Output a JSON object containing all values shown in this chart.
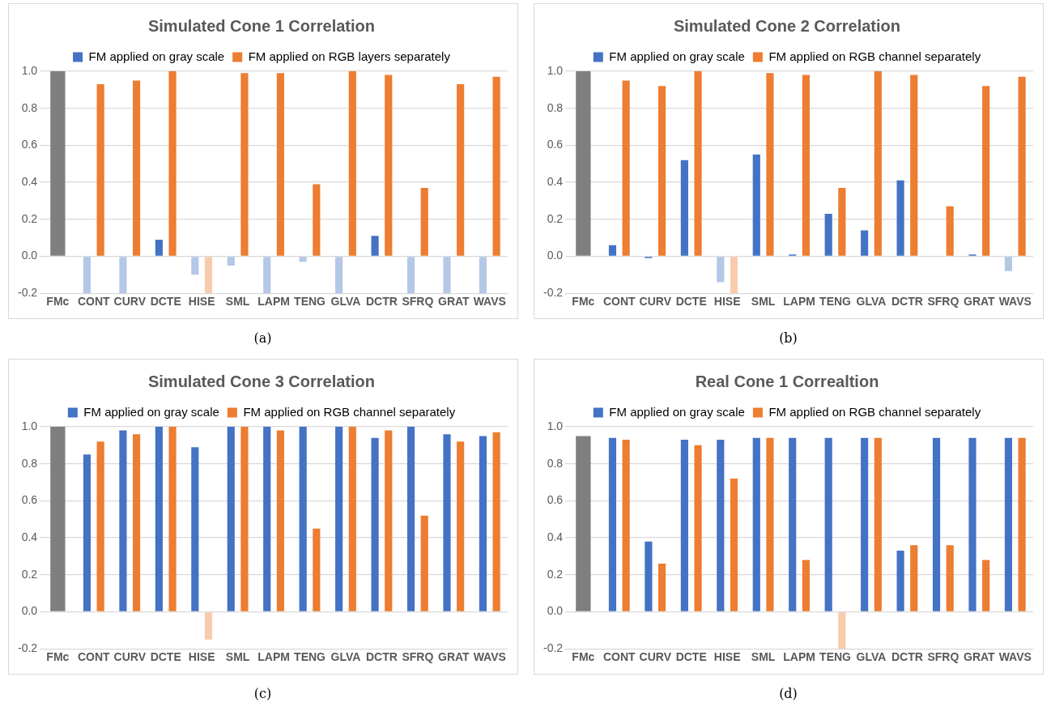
{
  "chart_data": [
    {
      "type": "bar",
      "title": "Simulated Cone 1 Correlation",
      "categories": [
        "FMc",
        "CONT",
        "CURV",
        "DCTE",
        "HISE",
        "SML",
        "LAPM",
        "TENG",
        "GLVA",
        "DCTR",
        "SFRQ",
        "GRAT",
        "WAVS"
      ],
      "series": [
        {
          "color": "#7f7f7f",
          "values": [
            1.0,
            null,
            null,
            null,
            null,
            null,
            null,
            null,
            null,
            null,
            null,
            null,
            null
          ]
        },
        {
          "name": "FM applied on gray scale",
          "color": "#4472c4",
          "colors": [
            "#4472c4",
            "#b4c7e7",
            "#b4c7e7",
            "#4472c4",
            "#b4c7e7",
            "#b4c7e7",
            "#b4c7e7",
            "#b4c7e7",
            "#b4c7e7",
            "#4472c4",
            "#b4c7e7",
            "#b4c7e7",
            "#b4c7e7"
          ],
          "values": [
            null,
            -0.2,
            -0.2,
            0.09,
            -0.1,
            -0.05,
            -0.2,
            -0.03,
            -0.2,
            0.11,
            -0.2,
            -0.2,
            -0.2
          ]
        },
        {
          "name": "FM applied on RGB layers separately",
          "color": "#ed7d31",
          "colors": [
            "#ed7d31",
            "#ed7d31",
            "#ed7d31",
            "#ed7d31",
            "#f8cbad",
            "#ed7d31",
            "#ed7d31",
            "#ed7d31",
            "#ed7d31",
            "#ed7d31",
            "#ed7d31",
            "#ed7d31",
            "#ed7d31"
          ],
          "values": [
            null,
            0.93,
            0.95,
            1.0,
            -0.2,
            0.99,
            0.99,
            0.39,
            1.0,
            0.98,
            0.37,
            0.93,
            0.97
          ]
        }
      ],
      "ylim": [
        -0.2,
        1.0
      ],
      "yticks": [
        {
          "value": -0.2,
          "label": "-0.2"
        },
        {
          "value": 0,
          "label": "0.0"
        },
        {
          "value": 0.2,
          "label": "0.2"
        },
        {
          "value": 0.4,
          "label": "0.4"
        },
        {
          "value": 0.6,
          "label": "0.6"
        },
        {
          "value": 0.8,
          "label": "0.8"
        },
        {
          "value": 1,
          "label": "1.0"
        }
      ],
      "grid": "y",
      "legend": "top",
      "annotations": [
        "(a)"
      ]
    },
    {
      "type": "bar",
      "title": "Simulated Cone 2 Correlation",
      "categories": [
        "FMc",
        "CONT",
        "CURV",
        "DCTE",
        "HISE",
        "SML",
        "LAPM",
        "TENG",
        "GLVA",
        "DCTR",
        "SFRQ",
        "GRAT",
        "WAVS"
      ],
      "series": [
        {
          "color": "#7f7f7f",
          "values": [
            1.0,
            null,
            null,
            null,
            null,
            null,
            null,
            null,
            null,
            null,
            null,
            null,
            null
          ]
        },
        {
          "name": "FM applied on gray scale",
          "color": "#4472c4",
          "colors": [
            "#4472c4",
            "#4472c4",
            "#4472c4",
            "#4472c4",
            "#b4c7e7",
            "#4472c4",
            "#4472c4",
            "#4472c4",
            "#4472c4",
            "#4472c4",
            "#4472c4",
            "#4472c4",
            "#b4c7e7"
          ],
          "values": [
            null,
            0.06,
            -0.01,
            0.52,
            -0.14,
            0.55,
            0.01,
            0.23,
            0.14,
            0.41,
            0.0,
            0.01,
            -0.08
          ]
        },
        {
          "name": "FM applied on RGB channel separately",
          "color": "#ed7d31",
          "colors": [
            "#ed7d31",
            "#ed7d31",
            "#ed7d31",
            "#ed7d31",
            "#f8cbad",
            "#ed7d31",
            "#ed7d31",
            "#ed7d31",
            "#ed7d31",
            "#ed7d31",
            "#ed7d31",
            "#ed7d31",
            "#ed7d31"
          ],
          "values": [
            null,
            0.95,
            0.92,
            1.0,
            -0.2,
            0.99,
            0.98,
            0.37,
            1.0,
            0.98,
            0.27,
            0.92,
            0.97
          ]
        }
      ],
      "ylim": [
        -0.2,
        1.0
      ],
      "yticks": [
        {
          "value": -0.2,
          "label": "-0.2"
        },
        {
          "value": 0,
          "label": "0.0"
        },
        {
          "value": 0.2,
          "label": "0.2"
        },
        {
          "value": 0.4,
          "label": "0.4"
        },
        {
          "value": 0.6,
          "label": "0.6"
        },
        {
          "value": 0.8,
          "label": "0.8"
        },
        {
          "value": 1,
          "label": "1.0"
        }
      ],
      "grid": "y",
      "legend": "top",
      "annotations": [
        "(b)"
      ]
    },
    {
      "type": "bar",
      "title": "Simulated Cone 3 Correlation",
      "categories": [
        "FMc",
        "CONT",
        "CURV",
        "DCTE",
        "HISE",
        "SML",
        "LAPM",
        "TENG",
        "GLVA",
        "DCTR",
        "SFRQ",
        "GRAT",
        "WAVS"
      ],
      "series": [
        {
          "color": "#7f7f7f",
          "values": [
            1.0,
            null,
            null,
            null,
            null,
            null,
            null,
            null,
            null,
            null,
            null,
            null,
            null
          ]
        },
        {
          "name": "FM applied on gray scale",
          "color": "#4472c4",
          "values": [
            null,
            0.85,
            0.98,
            1.0,
            0.89,
            1.0,
            1.0,
            1.0,
            1.0,
            0.94,
            1.0,
            0.96,
            0.95
          ]
        },
        {
          "name": "FM applied on RGB channel separately",
          "color": "#ed7d31",
          "colors": [
            "#ed7d31",
            "#ed7d31",
            "#ed7d31",
            "#ed7d31",
            "#f8cbad",
            "#ed7d31",
            "#ed7d31",
            "#ed7d31",
            "#ed7d31",
            "#ed7d31",
            "#ed7d31",
            "#ed7d31",
            "#ed7d31"
          ],
          "values": [
            null,
            0.92,
            0.96,
            1.0,
            -0.15,
            1.0,
            0.98,
            0.45,
            1.0,
            0.98,
            0.52,
            0.92,
            0.97
          ]
        }
      ],
      "ylim": [
        -0.2,
        1.0
      ],
      "yticks": [
        {
          "value": -0.2,
          "label": "-0.2"
        },
        {
          "value": 0,
          "label": "0.0"
        },
        {
          "value": 0.2,
          "label": "0.2"
        },
        {
          "value": 0.4,
          "label": "0.4"
        },
        {
          "value": 0.6,
          "label": "0.6"
        },
        {
          "value": 0.8,
          "label": "0.8"
        },
        {
          "value": 1,
          "label": "1.0"
        }
      ],
      "grid": "y",
      "legend": "top",
      "annotations": [
        "(c)"
      ]
    },
    {
      "type": "bar",
      "title": "Real Cone 1 Correaltion",
      "categories": [
        "FMc",
        "CONT",
        "CURV",
        "DCTE",
        "HISE",
        "SML",
        "LAPM",
        "TENG",
        "GLVA",
        "DCTR",
        "SFRQ",
        "GRAT",
        "WAVS"
      ],
      "series": [
        {
          "color": "#7f7f7f",
          "values": [
            0.95,
            null,
            null,
            null,
            null,
            null,
            null,
            null,
            null,
            null,
            null,
            null,
            null
          ]
        },
        {
          "name": "FM applied on gray scale",
          "color": "#4472c4",
          "values": [
            null,
            0.94,
            0.38,
            0.93,
            0.93,
            0.94,
            0.94,
            0.94,
            0.94,
            0.33,
            0.94,
            0.94,
            0.94
          ]
        },
        {
          "name": "FM applied on RGB channel separately",
          "color": "#ed7d31",
          "colors": [
            "#ed7d31",
            "#ed7d31",
            "#ed7d31",
            "#ed7d31",
            "#ed7d31",
            "#ed7d31",
            "#ed7d31",
            "#f8cbad",
            "#ed7d31",
            "#ed7d31",
            "#ed7d31",
            "#ed7d31",
            "#ed7d31"
          ],
          "values": [
            null,
            0.93,
            0.26,
            0.9,
            0.72,
            0.94,
            0.28,
            -0.2,
            0.94,
            0.36,
            0.36,
            0.28,
            0.94
          ]
        }
      ],
      "ylim": [
        -0.2,
        1.0
      ],
      "yticks": [
        {
          "value": -0.2,
          "label": "-0.2"
        },
        {
          "value": 0,
          "label": "0.0"
        },
        {
          "value": 0.2,
          "label": "0.2"
        },
        {
          "value": 0.4,
          "label": "0.4"
        },
        {
          "value": 0.6,
          "label": "0.6"
        },
        {
          "value": 0.8,
          "label": "0.8"
        },
        {
          "value": 1,
          "label": "1.0"
        }
      ],
      "grid": "y",
      "legend": "top",
      "annotations": [
        "(d)"
      ]
    }
  ]
}
